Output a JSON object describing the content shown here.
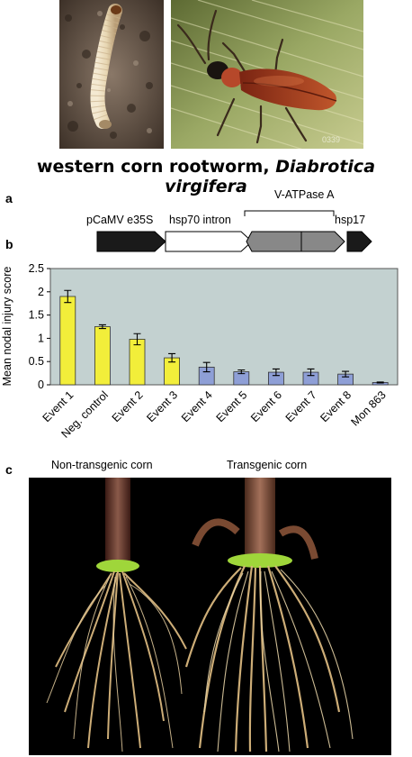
{
  "figure": {
    "caption_plain": "western corn rootworm, ",
    "caption_italic": "Diabrotica virgifera",
    "photo_badge": "0339",
    "panel_a": {
      "label": "a",
      "promoter": "pCaMV e35S",
      "intron": "hsp70 intron",
      "gene": "V-ATPase A",
      "terminator": "hsp17"
    },
    "panel_b": {
      "label": "b"
    },
    "panel_c": {
      "label": "c",
      "left_label": "Non-transgenic corn",
      "right_label": "Transgenic corn"
    }
  },
  "chart_data": {
    "type": "bar",
    "ylabel": "Mean nodal injury score",
    "ylim": [
      0,
      2.5
    ],
    "yticks": [
      "0",
      "0.5",
      "1",
      "1.5",
      "2",
      "2.5"
    ],
    "categories": [
      "Event 1",
      "Neg. control",
      "Event 2",
      "Event 3",
      "Event 4",
      "Event 5",
      "Event 6",
      "Event 7",
      "Event 8",
      "Mon 863"
    ],
    "values": [
      1.9,
      1.25,
      0.98,
      0.58,
      0.38,
      0.28,
      0.27,
      0.27,
      0.23,
      0.05
    ],
    "errors": [
      0.13,
      0.04,
      0.12,
      0.09,
      0.1,
      0.04,
      0.07,
      0.07,
      0.06,
      0.01
    ],
    "bar_colors": [
      "#f2ee3a",
      "#f2ee3a",
      "#f2ee3a",
      "#f2ee3a",
      "#8e9fd6",
      "#8e9fd6",
      "#8e9fd6",
      "#8e9fd6",
      "#8e9fd6",
      "#8e9fd6"
    ],
    "plot_background": "#c3d1d0",
    "grid": false,
    "legend": "none"
  }
}
